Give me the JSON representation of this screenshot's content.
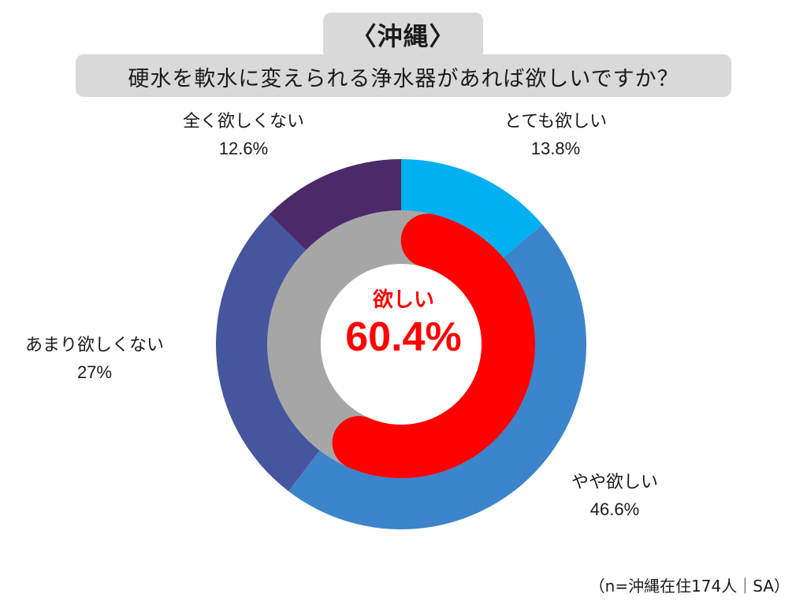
{
  "header": {
    "region": "〈沖縄〉",
    "question": "硬水を軟水に変えられる浄水器があれば欲しいですか？"
  },
  "chart_data": {
    "type": "pie",
    "variant": "nested-donut",
    "outer_ring": {
      "slices": [
        {
          "label": "とても欲しい",
          "value": 13.8,
          "display": "13.8%",
          "color": "#00b0f0"
        },
        {
          "label": "やや欲しい",
          "value": 46.6,
          "display": "46.6%",
          "color": "#3c84cc"
        },
        {
          "label": "あまり欲しくない",
          "value": 27.0,
          "display": "27%",
          "color": "#46569e"
        },
        {
          "label": "全く欲しくない",
          "value": 12.6,
          "display": "12.6%",
          "color": "#4c2a6a"
        }
      ]
    },
    "inner_ring": {
      "highlight_label": "欲しい",
      "highlight_value": 60.4,
      "highlight_display": "60.4%",
      "highlight_color": "#ff0000",
      "track_color": "#a6a6a6"
    }
  },
  "footnote": "（n=沖縄在住174人｜SA）"
}
